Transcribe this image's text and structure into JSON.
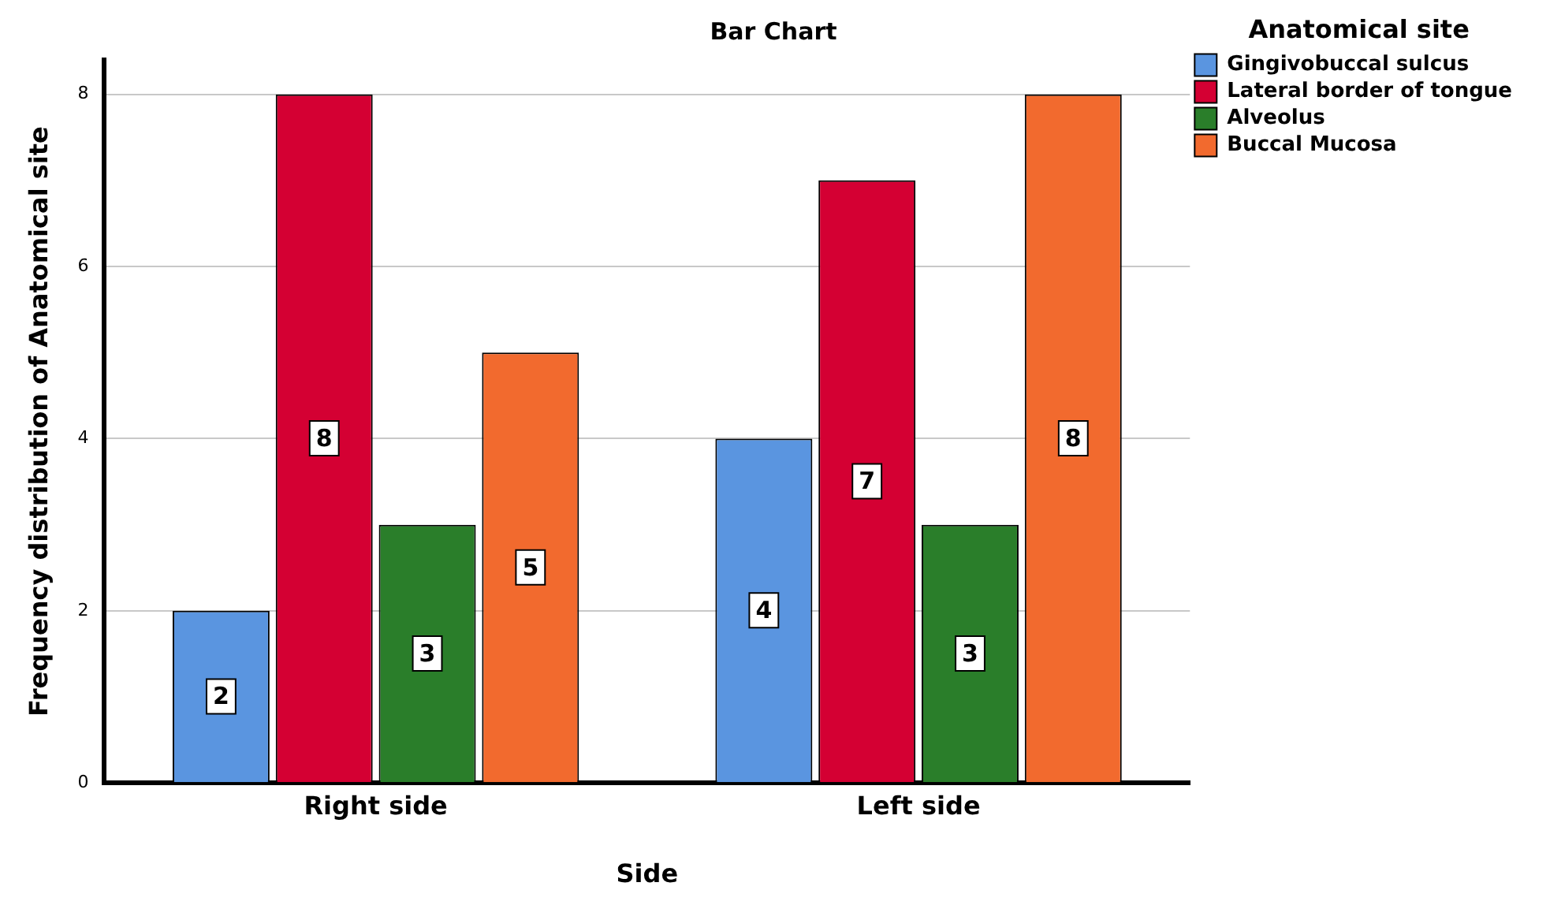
{
  "chart_data": {
    "type": "bar",
    "title": "Bar Chart",
    "xlabel": "Side",
    "ylabel": "Frequency distribution of Anatomical site",
    "legend_title": "Anatomical site",
    "categories": [
      "Right side",
      "Left side"
    ],
    "series": [
      {
        "name": "Gingivobuccal sulcus",
        "color": "#5a95e0",
        "values": [
          2,
          4
        ]
      },
      {
        "name": "Lateral border of tongue",
        "color": "#d40033",
        "values": [
          8,
          7
        ]
      },
      {
        "name": "Alveolus",
        "color": "#2a7e2a",
        "values": [
          3,
          3
        ]
      },
      {
        "name": "Buccal Mucosa",
        "color": "#f26a2e",
        "values": [
          5,
          8
        ]
      }
    ],
    "ylim": [
      0,
      8.4
    ],
    "yticks": [
      0,
      2,
      4,
      6,
      8
    ],
    "grid": "y",
    "legend": "top right",
    "data_labels": true
  }
}
